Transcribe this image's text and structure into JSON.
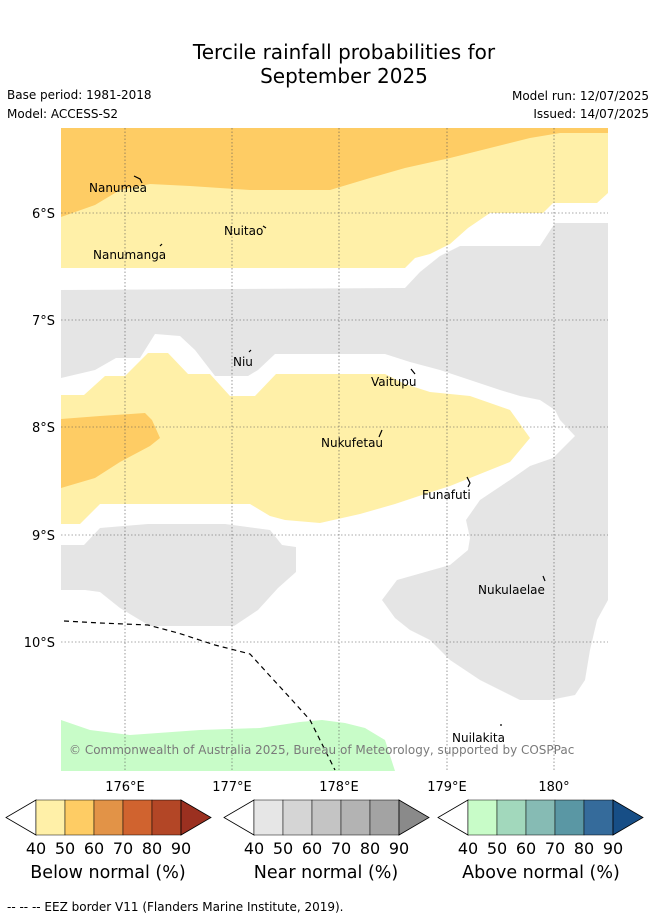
{
  "title_line1": "Tercile rainfall probabilities for",
  "title_line2": "September 2025",
  "base_period": "Base period: 1981-2018",
  "model": "Model: ACCESS-S2",
  "model_run": "Model run: 12/07/2025",
  "issued": "Issued: 14/07/2025",
  "copyright": "© Commonwealth of Australia 2025, Bureau of Meteorology, supported by COSPPac",
  "lat_labels": [
    "6°S",
    "7°S",
    "8°S",
    "9°S",
    "10°S"
  ],
  "lon_labels": [
    "176°E",
    "177°E",
    "178°E",
    "179°E",
    "180°"
  ],
  "islands": {
    "nanumea": "Nanumea",
    "nuitao": "Nuitao",
    "nanumanga": "Nanumanga",
    "niu": "Niu",
    "vaitupu": "Vaitupu",
    "nukufetau": "Nukufetau",
    "funafuti": "Funafuti",
    "nukulaelae": "Nukulaelae",
    "nuilakita": "Nuilakita"
  },
  "colorbars": [
    {
      "label": "Below normal (%)",
      "ticks": [
        "40",
        "50",
        "60",
        "70",
        "80",
        "90"
      ],
      "colors": [
        "#fff0a8",
        "#fecc64",
        "#e29347",
        "#d0632f",
        "#b34626",
        "#9b3020"
      ]
    },
    {
      "label": "Near normal (%)",
      "ticks": [
        "40",
        "50",
        "60",
        "70",
        "80",
        "90"
      ],
      "colors": [
        "#e6e6e6",
        "#d5d5d5",
        "#c4c4c4",
        "#b3b3b3",
        "#a3a3a3",
        "#8a8a8a"
      ]
    },
    {
      "label": "Above normal (%)",
      "ticks": [
        "40",
        "50",
        "60",
        "70",
        "80",
        "90"
      ],
      "colors": [
        "#c8fcc8",
        "#a2d8bc",
        "#86bbb4",
        "#5a97a4",
        "#356b9b",
        "#174e86"
      ]
    }
  ],
  "footer": "-- -- -- EEZ border V11 (Flanders Marine Institute, 2019)."
}
